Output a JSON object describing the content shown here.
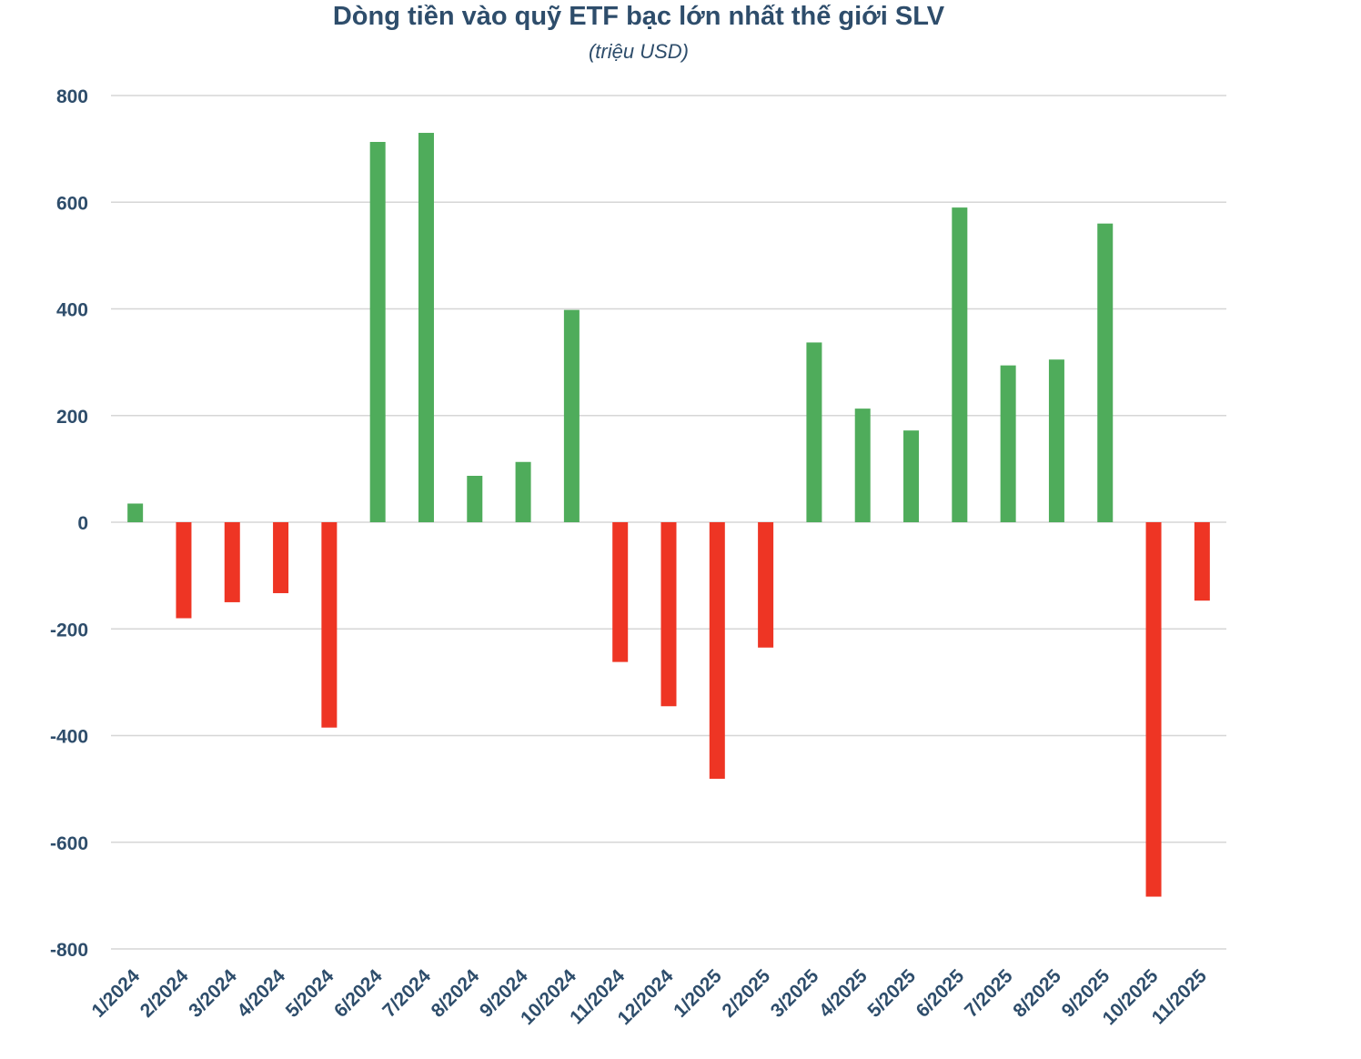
{
  "chart_data": {
    "type": "bar",
    "title": "Dòng tiền vào quỹ ETF bạc lớn nhất thế giới SLV",
    "subtitle": "(triệu USD)",
    "xlabel": "",
    "ylabel": "",
    "ylim": [
      -800,
      800
    ],
    "yticks": [
      800,
      600,
      400,
      200,
      0,
      -200,
      -400,
      -600,
      -800
    ],
    "grid": true,
    "categories": [
      "1/2024",
      "2/2024",
      "3/2024",
      "4/2024",
      "5/2024",
      "6/2024",
      "7/2024",
      "8/2024",
      "9/2024",
      "10/2024",
      "11/2024",
      "12/2024",
      "1/2025",
      "2/2025",
      "3/2025",
      "4/2025",
      "5/2025",
      "6/2025",
      "7/2025",
      "8/2025",
      "9/2025",
      "10/2025",
      "11/2025"
    ],
    "values": [
      35,
      -180,
      -150,
      -133,
      -385,
      713,
      730,
      87,
      113,
      398,
      -262,
      -345,
      -481,
      -235,
      337,
      213,
      172,
      590,
      294,
      305,
      560,
      -702,
      -147
    ],
    "colors": {
      "positive": "#4fac5b",
      "negative": "#ee3524"
    }
  }
}
